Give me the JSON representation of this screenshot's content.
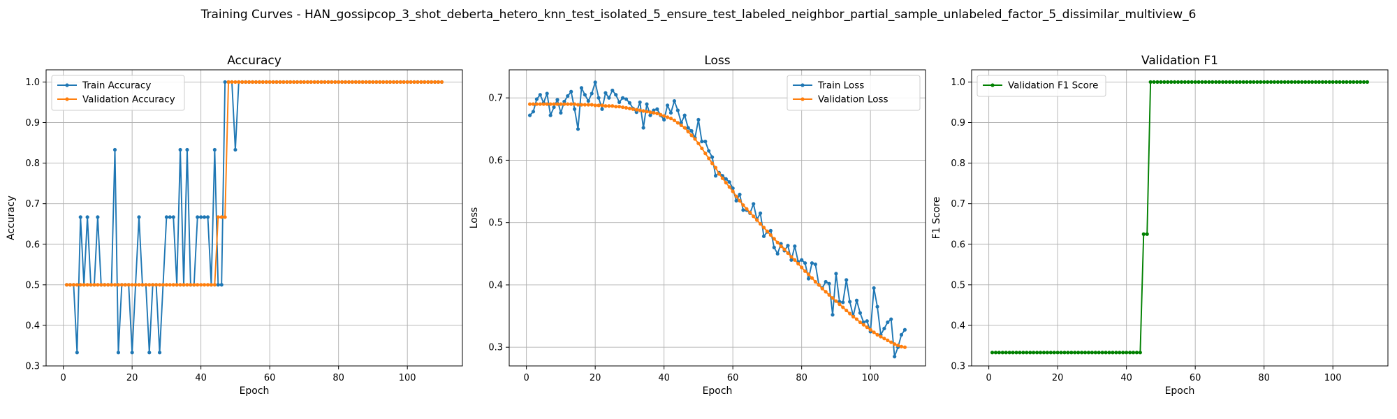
{
  "figure": {
    "suptitle": "Training Curves - HAN_gossipcop_3_shot_deberta_hetero_knn_test_isolated_5_ensure_test_labeled_neighbor_partial_sample_unlabeled_factor_5_dissimilar_multiview_6"
  },
  "chart_data": [
    {
      "type": "line",
      "title": "Accuracy",
      "xlabel": "Epoch",
      "ylabel": "Accuracy",
      "xlim": [
        -5,
        116
      ],
      "ylim": [
        0.3,
        1.03
      ],
      "xticks": [
        0,
        20,
        40,
        60,
        80,
        100
      ],
      "yticks": [
        0.3,
        0.4,
        0.5,
        0.6,
        0.7,
        0.8,
        0.9,
        1.0
      ],
      "grid": true,
      "legend_position": "upper left",
      "series": [
        {
          "name": "Train Accuracy",
          "color": "#1f77b4",
          "x_start": 1,
          "values": [
            0.5,
            0.5,
            0.5,
            0.333,
            0.667,
            0.5,
            0.667,
            0.5,
            0.5,
            0.667,
            0.5,
            0.5,
            0.5,
            0.5,
            0.833,
            0.333,
            0.5,
            0.5,
            0.5,
            0.333,
            0.5,
            0.667,
            0.5,
            0.5,
            0.333,
            0.5,
            0.5,
            0.333,
            0.5,
            0.667,
            0.667,
            0.667,
            0.5,
            0.833,
            0.5,
            0.833,
            0.5,
            0.5,
            0.667,
            0.667,
            0.667,
            0.667,
            0.5,
            0.833,
            0.5,
            0.5,
            1.0,
            1.0,
            1.0,
            0.833,
            1.0,
            1.0,
            1.0,
            1.0,
            1.0,
            1.0,
            1.0,
            1.0,
            1.0,
            1.0,
            1.0,
            1.0,
            1.0,
            1.0,
            1.0,
            1.0,
            1.0,
            1.0,
            1.0,
            1.0,
            1.0,
            1.0,
            1.0,
            1.0,
            1.0,
            1.0,
            1.0,
            1.0,
            1.0,
            1.0,
            1.0,
            1.0,
            1.0,
            1.0,
            1.0,
            1.0,
            1.0,
            1.0,
            1.0,
            1.0,
            1.0,
            1.0,
            1.0,
            1.0,
            1.0,
            1.0,
            1.0,
            1.0,
            1.0,
            1.0,
            1.0,
            1.0,
            1.0,
            1.0,
            1.0,
            1.0,
            1.0,
            1.0,
            1.0,
            1.0
          ]
        },
        {
          "name": "Validation Accuracy",
          "color": "#ff7f0e",
          "x_start": 1,
          "values": [
            0.5,
            0.5,
            0.5,
            0.5,
            0.5,
            0.5,
            0.5,
            0.5,
            0.5,
            0.5,
            0.5,
            0.5,
            0.5,
            0.5,
            0.5,
            0.5,
            0.5,
            0.5,
            0.5,
            0.5,
            0.5,
            0.5,
            0.5,
            0.5,
            0.5,
            0.5,
            0.5,
            0.5,
            0.5,
            0.5,
            0.5,
            0.5,
            0.5,
            0.5,
            0.5,
            0.5,
            0.5,
            0.5,
            0.5,
            0.5,
            0.5,
            0.5,
            0.5,
            0.5,
            0.667,
            0.667,
            0.667,
            1.0,
            1.0,
            1.0,
            1.0,
            1.0,
            1.0,
            1.0,
            1.0,
            1.0,
            1.0,
            1.0,
            1.0,
            1.0,
            1.0,
            1.0,
            1.0,
            1.0,
            1.0,
            1.0,
            1.0,
            1.0,
            1.0,
            1.0,
            1.0,
            1.0,
            1.0,
            1.0,
            1.0,
            1.0,
            1.0,
            1.0,
            1.0,
            1.0,
            1.0,
            1.0,
            1.0,
            1.0,
            1.0,
            1.0,
            1.0,
            1.0,
            1.0,
            1.0,
            1.0,
            1.0,
            1.0,
            1.0,
            1.0,
            1.0,
            1.0,
            1.0,
            1.0,
            1.0,
            1.0,
            1.0,
            1.0,
            1.0,
            1.0,
            1.0,
            1.0,
            1.0,
            1.0,
            1.0
          ]
        }
      ]
    },
    {
      "type": "line",
      "title": "Loss",
      "xlabel": "Epoch",
      "ylabel": "Loss",
      "xlim": [
        -5,
        116
      ],
      "ylim": [
        0.27,
        0.745
      ],
      "xticks": [
        0,
        20,
        40,
        60,
        80,
        100
      ],
      "yticks": [
        0.3,
        0.4,
        0.5,
        0.6,
        0.7
      ],
      "grid": true,
      "legend_position": "upper right",
      "series": [
        {
          "name": "Train Loss",
          "color": "#1f77b4",
          "x_start": 1,
          "values": [
            0.672,
            0.678,
            0.698,
            0.705,
            0.692,
            0.707,
            0.672,
            0.685,
            0.697,
            0.676,
            0.694,
            0.703,
            0.71,
            0.682,
            0.65,
            0.716,
            0.705,
            0.695,
            0.707,
            0.725,
            0.7,
            0.682,
            0.708,
            0.7,
            0.712,
            0.705,
            0.693,
            0.7,
            0.698,
            0.692,
            0.683,
            0.677,
            0.693,
            0.652,
            0.69,
            0.672,
            0.68,
            0.682,
            0.672,
            0.665,
            0.688,
            0.676,
            0.695,
            0.68,
            0.66,
            0.672,
            0.652,
            0.647,
            0.636,
            0.665,
            0.63,
            0.63,
            0.615,
            0.605,
            0.575,
            0.58,
            0.575,
            0.57,
            0.565,
            0.555,
            0.535,
            0.545,
            0.52,
            0.52,
            0.515,
            0.53,
            0.505,
            0.515,
            0.478,
            0.485,
            0.487,
            0.46,
            0.45,
            0.466,
            0.455,
            0.463,
            0.44,
            0.462,
            0.437,
            0.44,
            0.435,
            0.41,
            0.435,
            0.433,
            0.4,
            0.395,
            0.405,
            0.402,
            0.352,
            0.418,
            0.373,
            0.372,
            0.408,
            0.373,
            0.35,
            0.375,
            0.355,
            0.34,
            0.342,
            0.325,
            0.395,
            0.365,
            0.32,
            0.33,
            0.34,
            0.345,
            0.285,
            0.3,
            0.32,
            0.328
          ]
        },
        {
          "name": "Validation Loss",
          "color": "#ff7f0e",
          "x_start": 1,
          "values": [
            0.69,
            0.69,
            0.69,
            0.69,
            0.69,
            0.69,
            0.69,
            0.69,
            0.69,
            0.69,
            0.69,
            0.69,
            0.69,
            0.69,
            0.689,
            0.689,
            0.689,
            0.689,
            0.689,
            0.688,
            0.688,
            0.688,
            0.687,
            0.687,
            0.687,
            0.686,
            0.686,
            0.685,
            0.684,
            0.683,
            0.682,
            0.681,
            0.68,
            0.679,
            0.678,
            0.677,
            0.676,
            0.675,
            0.673,
            0.671,
            0.669,
            0.667,
            0.664,
            0.66,
            0.656,
            0.652,
            0.646,
            0.64,
            0.634,
            0.627,
            0.619,
            0.611,
            0.603,
            0.595,
            0.588,
            0.578,
            0.571,
            0.564,
            0.557,
            0.55,
            0.542,
            0.535,
            0.528,
            0.522,
            0.516,
            0.51,
            0.504,
            0.498,
            0.492,
            0.486,
            0.48,
            0.474,
            0.468,
            0.462,
            0.457,
            0.451,
            0.445,
            0.44,
            0.434,
            0.428,
            0.422,
            0.417,
            0.411,
            0.405,
            0.4,
            0.394,
            0.389,
            0.384,
            0.379,
            0.374,
            0.369,
            0.364,
            0.359,
            0.354,
            0.349,
            0.345,
            0.34,
            0.336,
            0.332,
            0.328,
            0.324,
            0.32,
            0.317,
            0.314,
            0.311,
            0.308,
            0.305,
            0.303,
            0.301,
            0.3
          ]
        }
      ]
    },
    {
      "type": "line",
      "title": "Validation F1",
      "xlabel": "Epoch",
      "ylabel": "F1 Score",
      "xlim": [
        -5,
        116
      ],
      "ylim": [
        0.3,
        1.03
      ],
      "xticks": [
        0,
        20,
        40,
        60,
        80,
        100
      ],
      "yticks": [
        0.3,
        0.4,
        0.5,
        0.6,
        0.7,
        0.8,
        0.9,
        1.0
      ],
      "grid": true,
      "legend_position": "upper left",
      "series": [
        {
          "name": "Validation F1 Score",
          "color": "#008000",
          "x_start": 1,
          "values": [
            0.333,
            0.333,
            0.333,
            0.333,
            0.333,
            0.333,
            0.333,
            0.333,
            0.333,
            0.333,
            0.333,
            0.333,
            0.333,
            0.333,
            0.333,
            0.333,
            0.333,
            0.333,
            0.333,
            0.333,
            0.333,
            0.333,
            0.333,
            0.333,
            0.333,
            0.333,
            0.333,
            0.333,
            0.333,
            0.333,
            0.333,
            0.333,
            0.333,
            0.333,
            0.333,
            0.333,
            0.333,
            0.333,
            0.333,
            0.333,
            0.333,
            0.333,
            0.333,
            0.333,
            0.625,
            0.625,
            1.0,
            1.0,
            1.0,
            1.0,
            1.0,
            1.0,
            1.0,
            1.0,
            1.0,
            1.0,
            1.0,
            1.0,
            1.0,
            1.0,
            1.0,
            1.0,
            1.0,
            1.0,
            1.0,
            1.0,
            1.0,
            1.0,
            1.0,
            1.0,
            1.0,
            1.0,
            1.0,
            1.0,
            1.0,
            1.0,
            1.0,
            1.0,
            1.0,
            1.0,
            1.0,
            1.0,
            1.0,
            1.0,
            1.0,
            1.0,
            1.0,
            1.0,
            1.0,
            1.0,
            1.0,
            1.0,
            1.0,
            1.0,
            1.0,
            1.0,
            1.0,
            1.0,
            1.0,
            1.0,
            1.0,
            1.0,
            1.0,
            1.0,
            1.0,
            1.0,
            1.0,
            1.0,
            1.0,
            1.0
          ]
        }
      ]
    }
  ]
}
